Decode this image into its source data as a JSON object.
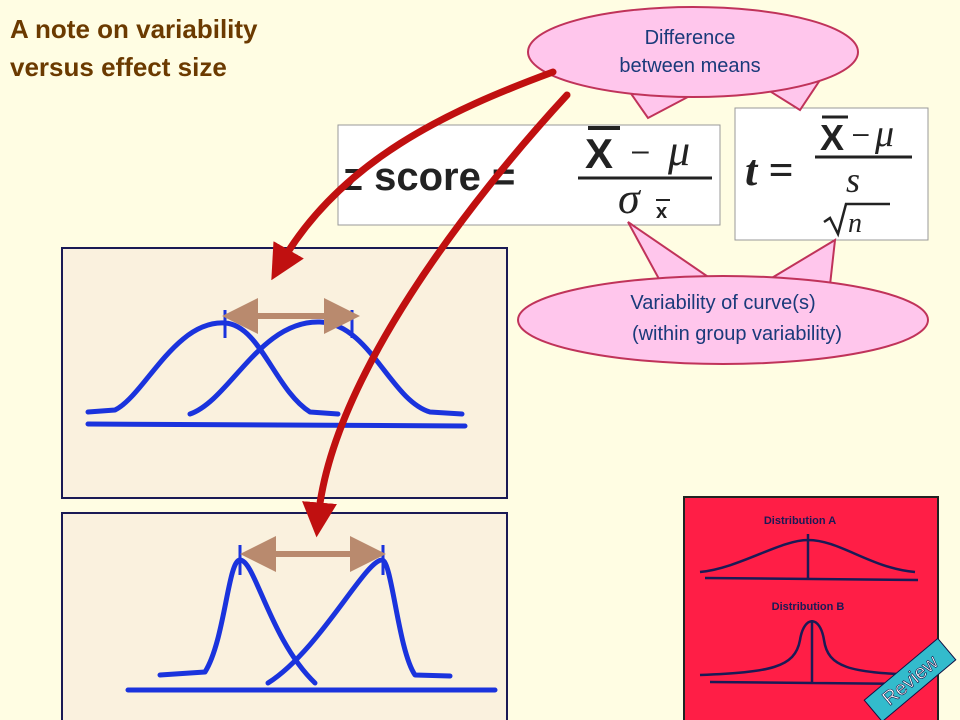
{
  "header": {
    "title": [
      "A note on variability",
      "versus effect size"
    ]
  },
  "callouts": [
    {
      "lines": [
        "Difference",
        "between means"
      ]
    },
    {
      "lines": [
        "Variability of curve(s)",
        "(within group variability)"
      ]
    }
  ],
  "z_formula": {
    "lhs": "z score =",
    "numerator": [
      "X",
      "–",
      "μ"
    ],
    "denominator": [
      "σ",
      "x"
    ]
  },
  "t_formula": {
    "lhs": "t =",
    "numerator": [
      "X",
      "–",
      "μ"
    ],
    "denominator": [
      "s",
      "n"
    ]
  },
  "review_panel": {
    "labels": [
      "Distribution A",
      "Distribution B"
    ],
    "tag": "Review"
  }
}
